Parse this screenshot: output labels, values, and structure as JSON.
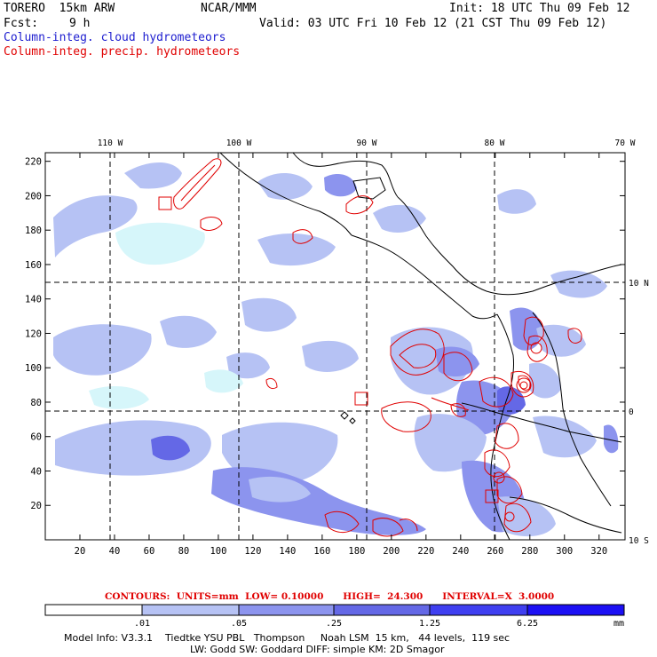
{
  "header": {
    "model": "TORERO  15km ARW",
    "org": "NCAR/MMM",
    "init": "Init: 18 UTC Thu 09 Feb 12",
    "fcst_label": "Fcst:",
    "fcst_value": "9 h",
    "valid": "Valid: 03 UTC Fri 10 Feb 12 (21 CST Thu 09 Feb 12)",
    "title_cloud": "Column-integ. cloud hydrometeors",
    "title_precip": "Column-integ. precip. hydrometeors"
  },
  "colors": {
    "cloud_lightest": "#d6f6fa",
    "cloud_light": "#b6c2f4",
    "cloud_medium": "#8c94ee",
    "cloud_dark": "#6468e6",
    "cloud_darker": "#3f3ff0",
    "cloud_darkest": "#1c10f4",
    "precip_contour": "#e00000",
    "coast": "#000000"
  },
  "chart_data": {
    "type": "contour map",
    "x_ticks": [
      20,
      40,
      60,
      80,
      100,
      120,
      140,
      160,
      180,
      200,
      220,
      240,
      260,
      280,
      300,
      320
    ],
    "y_ticks": [
      20,
      40,
      60,
      80,
      100,
      120,
      140,
      160,
      180,
      200,
      220
    ],
    "xlim": [
      0,
      335
    ],
    "ylim": [
      0,
      225
    ],
    "lon_labels": [
      "110 W",
      "100 W",
      "90 W",
      "80 W",
      "70 W"
    ],
    "lat_labels": [
      "10 N",
      "0",
      "10 S"
    ],
    "lon_lines_x": [
      39,
      114,
      188,
      261
    ],
    "lat_lines_y": [
      150,
      76
    ],
    "grid": "dashed lat/lon lines",
    "contours": {
      "units": "mm",
      "low": "0.10000",
      "high": "24.300",
      "interval": "3.0000",
      "text": "CONTOURS:  UNITS=mm  LOW= 0.10000      HIGH=  24.300      INTERVAL=X  3.0000"
    },
    "colorbar": {
      "levels": [
        ".01",
        ".05",
        ".25",
        "1.25",
        "6.25"
      ],
      "unit": "mm"
    }
  },
  "footer": {
    "line1": "Model Info: V3.3.1    Tiedtke YSU PBL   Thompson     Noah LSM  15 km,   44 levels,  119 sec",
    "line2": "LW: Godd SW: Goddard DIFF: simple KM: 2D Smagor"
  }
}
